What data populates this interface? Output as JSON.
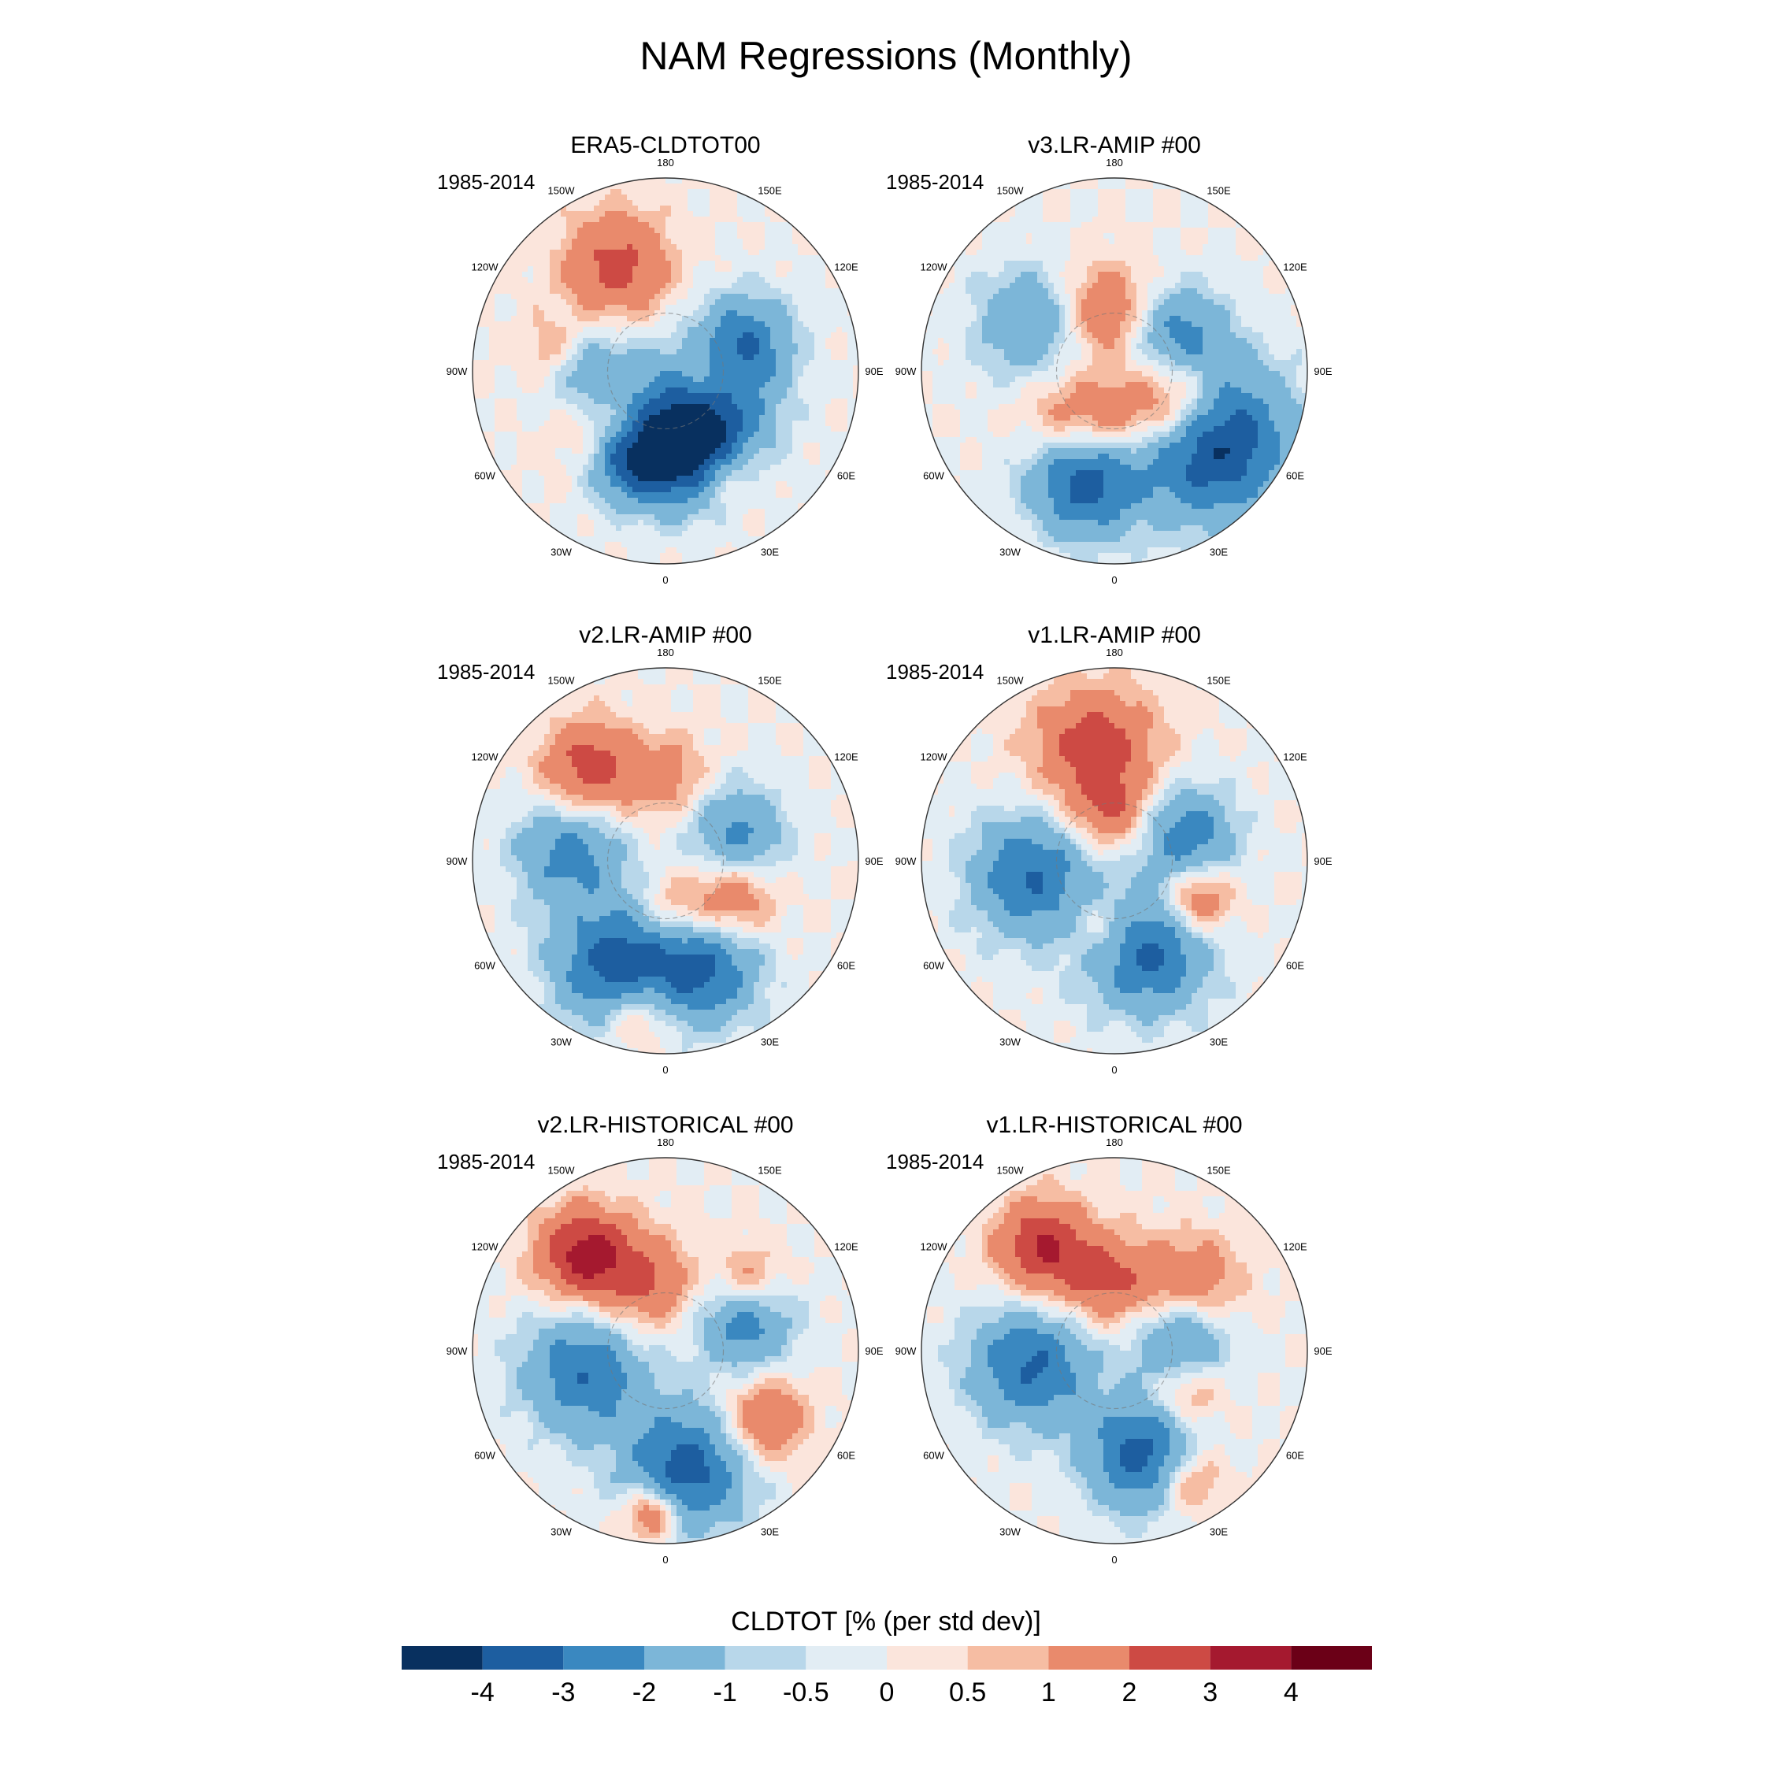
{
  "figure": {
    "title": "NAM Regressions (Monthly)",
    "colorbar_title": "CLDTOT [% (per std dev)]"
  },
  "chart_data": {
    "type": "heatmap",
    "projection": "north-polar-stereographic",
    "variable": "CLDTOT",
    "units": "% (per std dev)",
    "longitude_labels": [
      "180",
      "150E",
      "120E",
      "90E",
      "60E",
      "30E",
      "0",
      "30W",
      "60W",
      "90W",
      "120W",
      "150W"
    ],
    "colorbar": {
      "levels": [
        "-4",
        "-3",
        "-2",
        "-1",
        "-0.5",
        "0",
        "0.5",
        "1",
        "2",
        "3",
        "4"
      ],
      "colors": [
        "#08305f",
        "#1d5ea0",
        "#3a88c0",
        "#7cb6d8",
        "#b8d7ea",
        "#e2edf4",
        "#fbe5dc",
        "#f6bda3",
        "#e98a6c",
        "#cd4a44",
        "#a5192f",
        "#6b0017"
      ]
    },
    "panels": [
      {
        "title": "ERA5-CLDTOT00",
        "period": "1985-2014",
        "anomalies": [
          {
            "lon": 45,
            "lat": 68,
            "val": -4.2,
            "spread": 18
          },
          {
            "lon": 10,
            "lat": 55,
            "val": -3.6,
            "spread": 16
          },
          {
            "lon": -25,
            "lat": 50,
            "val": -3.3,
            "spread": 12
          },
          {
            "lon": 110,
            "lat": 55,
            "val": -2.6,
            "spread": 14
          },
          {
            "lon": -85,
            "lat": 60,
            "val": -2.1,
            "spread": 14
          },
          {
            "lon": -155,
            "lat": 42,
            "val": 2.4,
            "spread": 16
          },
          {
            "lon": 75,
            "lat": 72,
            "val": 2.3,
            "spread": 12
          },
          {
            "lon": -45,
            "lat": 55,
            "val": 1.9,
            "spread": 14
          },
          {
            "lon": 30,
            "lat": 40,
            "val": 1.4,
            "spread": 10
          },
          {
            "lon": -100,
            "lat": 42,
            "val": 1.2,
            "spread": 10
          }
        ]
      },
      {
        "title": "v3.LR-AMIP  #00",
        "period": "1985-2014",
        "anomalies": [
          {
            "lon": 55,
            "lat": 40,
            "val": -4.4,
            "spread": 22
          },
          {
            "lon": -15,
            "lat": 42,
            "val": -3.4,
            "spread": 16
          },
          {
            "lon": 120,
            "lat": 60,
            "val": -2.4,
            "spread": 14
          },
          {
            "lon": -120,
            "lat": 50,
            "val": -2.2,
            "spread": 16
          },
          {
            "lon": 65,
            "lat": 62,
            "val": 3.2,
            "spread": 14
          },
          {
            "lon": -170,
            "lat": 65,
            "val": 2.2,
            "spread": 14
          },
          {
            "lon": 0,
            "lat": 70,
            "val": 1.8,
            "spread": 12
          },
          {
            "lon": -50,
            "lat": 62,
            "val": 1.4,
            "spread": 12
          }
        ]
      },
      {
        "title": "v2.LR-AMIP  #00",
        "period": "1985-2014",
        "anomalies": [
          {
            "lon": -25,
            "lat": 42,
            "val": -3.5,
            "spread": 18
          },
          {
            "lon": 20,
            "lat": 42,
            "val": -3.0,
            "spread": 16
          },
          {
            "lon": -95,
            "lat": 50,
            "val": -2.4,
            "spread": 16
          },
          {
            "lon": 110,
            "lat": 58,
            "val": -2.3,
            "spread": 14
          },
          {
            "lon": -140,
            "lat": 40,
            "val": 2.6,
            "spread": 14
          },
          {
            "lon": 60,
            "lat": 58,
            "val": 2.2,
            "spread": 12
          },
          {
            "lon": -10,
            "lat": 25,
            "val": 1.9,
            "spread": 10
          },
          {
            "lon": 180,
            "lat": 55,
            "val": 1.5,
            "spread": 12
          },
          {
            "lon": 10,
            "lat": 70,
            "val": 1.4,
            "spread": 10
          }
        ]
      },
      {
        "title": "v1.LR-AMIP  #00",
        "period": "1985-2014",
        "anomalies": [
          {
            "lon": 20,
            "lat": 50,
            "val": -3.3,
            "spread": 18
          },
          {
            "lon": -80,
            "lat": 55,
            "val": -3.0,
            "spread": 18
          },
          {
            "lon": 110,
            "lat": 58,
            "val": -2.7,
            "spread": 14
          },
          {
            "lon": -170,
            "lat": 42,
            "val": 2.5,
            "spread": 18
          },
          {
            "lon": 65,
            "lat": 52,
            "val": 2.5,
            "spread": 10
          },
          {
            "lon": -175,
            "lat": 70,
            "val": 1.8,
            "spread": 12
          },
          {
            "lon": -10,
            "lat": 62,
            "val": 1.4,
            "spread": 10
          }
        ]
      },
      {
        "title": "v2.LR-HISTORICAL  #00",
        "period": "1985-2014",
        "anomalies": [
          {
            "lon": 10,
            "lat": 40,
            "val": -3.5,
            "spread": 18
          },
          {
            "lon": -75,
            "lat": 55,
            "val": -2.9,
            "spread": 18
          },
          {
            "lon": 110,
            "lat": 55,
            "val": -2.6,
            "spread": 14
          },
          {
            "lon": -140,
            "lat": 38,
            "val": 3.4,
            "spread": 14
          },
          {
            "lon": -5,
            "lat": 22,
            "val": 2.8,
            "spread": 8
          },
          {
            "lon": 55,
            "lat": 40,
            "val": 2.3,
            "spread": 12
          },
          {
            "lon": -165,
            "lat": 62,
            "val": 2.0,
            "spread": 14
          },
          {
            "lon": 130,
            "lat": 45,
            "val": 1.8,
            "spread": 10
          }
        ]
      },
      {
        "title": "v1.LR-HISTORICAL  #00",
        "period": "1985-2014",
        "anomalies": [
          {
            "lon": 15,
            "lat": 45,
            "val": -3.5,
            "spread": 16
          },
          {
            "lon": -80,
            "lat": 55,
            "val": -3.1,
            "spread": 18
          },
          {
            "lon": 100,
            "lat": 62,
            "val": -2.6,
            "spread": 14
          },
          {
            "lon": -145,
            "lat": 38,
            "val": 3.0,
            "spread": 14
          },
          {
            "lon": 130,
            "lat": 48,
            "val": 2.1,
            "spread": 14
          },
          {
            "lon": -175,
            "lat": 62,
            "val": 2.1,
            "spread": 14
          },
          {
            "lon": 30,
            "lat": 28,
            "val": 1.9,
            "spread": 10
          },
          {
            "lon": 60,
            "lat": 55,
            "val": 1.7,
            "spread": 10
          }
        ]
      }
    ]
  }
}
